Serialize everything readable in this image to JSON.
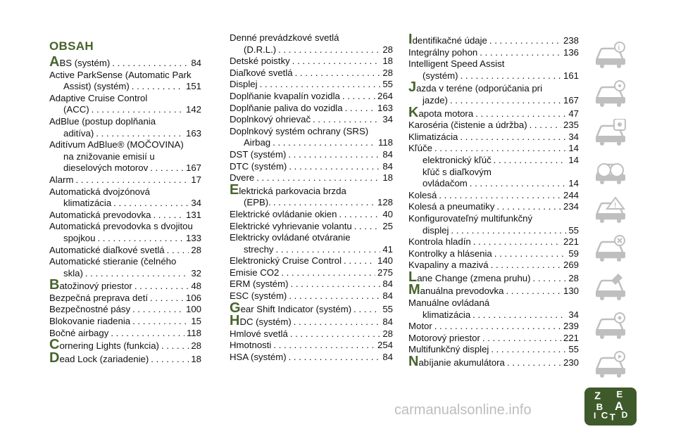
{
  "heading": "OBSAH",
  "columns": [
    [
      {
        "letter": "A",
        "lines": [
          {
            "text": "BS (systém)",
            "page": "84"
          }
        ]
      },
      {
        "lines": [
          {
            "text": "Active ParkSense (Automatic Park"
          },
          {
            "text": "Assist) (systém)",
            "page": "151",
            "indent": true
          }
        ]
      },
      {
        "lines": [
          {
            "text": "Adaptive Cruise Control"
          },
          {
            "text": "(ACC)",
            "page": "142",
            "indent": true
          }
        ]
      },
      {
        "lines": [
          {
            "text": "AdBlue (postup doplňania"
          },
          {
            "text": "aditíva)",
            "page": "163",
            "indent": true
          }
        ]
      },
      {
        "lines": [
          {
            "text": "Aditívum AdBlue® (MOČOVINA)"
          },
          {
            "text": "na znižovanie emisií u",
            "indent": true
          },
          {
            "text": "dieselových motorov",
            "page": "167",
            "indent": true
          }
        ]
      },
      {
        "lines": [
          {
            "text": "Alarm",
            "page": "17"
          }
        ]
      },
      {
        "lines": [
          {
            "text": "Automatická dvojzónová"
          },
          {
            "text": "klimatizácia",
            "page": "34",
            "indent": true
          }
        ]
      },
      {
        "lines": [
          {
            "text": "Automatická prevodovka",
            "page": "131"
          }
        ]
      },
      {
        "lines": [
          {
            "text": "Automatická prevodovka s dvojitou"
          },
          {
            "text": "spojkou",
            "page": "133",
            "indent": true
          }
        ]
      },
      {
        "lines": [
          {
            "text": "Automatické diaľkové svetlá",
            "page": "28"
          }
        ]
      },
      {
        "lines": [
          {
            "text": "Automatické stieranie (čelného"
          },
          {
            "text": "skla)",
            "page": "32",
            "indent": true
          }
        ]
      },
      {
        "letter": "B",
        "lines": [
          {
            "text": "atožinový priestor",
            "page": "48"
          }
        ]
      },
      {
        "lines": [
          {
            "text": "Bezpečná preprava detí",
            "page": "106"
          }
        ]
      },
      {
        "lines": [
          {
            "text": "Bezpečnostné pásy",
            "page": "100"
          }
        ]
      },
      {
        "lines": [
          {
            "text": "Blokovanie riadenia",
            "page": "15"
          }
        ]
      },
      {
        "lines": [
          {
            "text": "Bočné airbagy",
            "page": "118"
          }
        ]
      },
      {
        "letter": "C",
        "lines": [
          {
            "text": "ornering Lights (funkcia)",
            "page": "28"
          }
        ]
      },
      {
        "letter": "D",
        "lines": [
          {
            "text": "ead Lock (zariadenie)",
            "page": "18"
          }
        ]
      }
    ],
    [
      {
        "lines": [
          {
            "text": "Denné prevádzkové svetlá"
          },
          {
            "text": "(D.R.L.)",
            "page": "28",
            "indent": true
          }
        ]
      },
      {
        "lines": [
          {
            "text": "Detské poistky",
            "page": "18"
          }
        ]
      },
      {
        "lines": [
          {
            "text": "Diaľkové svetlá",
            "page": "28"
          }
        ]
      },
      {
        "lines": [
          {
            "text": "Displej",
            "page": "55"
          }
        ]
      },
      {
        "lines": [
          {
            "text": "Doplňanie kvapalín vozidla",
            "page": "264"
          }
        ]
      },
      {
        "lines": [
          {
            "text": "Doplňanie paliva do vozidla",
            "page": "163"
          }
        ]
      },
      {
        "lines": [
          {
            "text": "Doplnkový ohrievač",
            "page": "34"
          }
        ]
      },
      {
        "lines": [
          {
            "text": "Doplnkový systém ochrany (SRS)"
          },
          {
            "text": "Airbag",
            "page": "118",
            "indent": true
          }
        ]
      },
      {
        "lines": [
          {
            "text": "DST (systém)",
            "page": "84"
          }
        ]
      },
      {
        "lines": [
          {
            "text": "DTC (systém)",
            "page": "84"
          }
        ]
      },
      {
        "lines": [
          {
            "text": "Dvere",
            "page": "18"
          }
        ]
      },
      {
        "letter": "E",
        "lines": [
          {
            "text": "lektrická parkovacia brzda"
          },
          {
            "text": "(EPB).",
            "page": "128",
            "indent": true
          }
        ]
      },
      {
        "lines": [
          {
            "text": "Elektrické ovládanie okien",
            "page": "40"
          }
        ]
      },
      {
        "lines": [
          {
            "text": "Elektrické vyhrievanie volantu",
            "page": "25"
          }
        ]
      },
      {
        "lines": [
          {
            "text": "Elektricky ovládané otváranie"
          },
          {
            "text": "strechy",
            "page": "41",
            "indent": true
          }
        ]
      },
      {
        "lines": [
          {
            "text": "Elektronický Cruise Control",
            "page": "140"
          }
        ]
      },
      {
        "lines": [
          {
            "text": "Emisie CO2",
            "page": "275"
          }
        ]
      },
      {
        "lines": [
          {
            "text": "ERM (systém)",
            "page": "84"
          }
        ]
      },
      {
        "lines": [
          {
            "text": "ESC (systém)",
            "page": "84"
          }
        ]
      },
      {
        "letter": "G",
        "lines": [
          {
            "text": "ear Shift Indicator (systém)",
            "page": "55"
          }
        ]
      },
      {
        "letter": "H",
        "lines": [
          {
            "text": "DC (systém)",
            "page": "84"
          }
        ]
      },
      {
        "lines": [
          {
            "text": "Hmlové svetlá",
            "page": "28"
          }
        ]
      },
      {
        "lines": [
          {
            "text": "Hmotnosti",
            "page": "254"
          }
        ]
      },
      {
        "lines": [
          {
            "text": "HSA (systém)",
            "page": "84"
          }
        ]
      }
    ],
    [
      {
        "letter": "I",
        "lines": [
          {
            "text": "dentifikačné údaje",
            "page": "238"
          }
        ]
      },
      {
        "lines": [
          {
            "text": "Integrálny pohon",
            "page": "136"
          }
        ]
      },
      {
        "lines": [
          {
            "text": "Intelligent Speed Assist"
          },
          {
            "text": "(systém)",
            "page": "161",
            "indent": true
          }
        ]
      },
      {
        "letter": "J",
        "lines": [
          {
            "text": "azda v teréne (odporúčania pri"
          },
          {
            "text": "jazde)",
            "page": "167",
            "indent": true
          }
        ]
      },
      {
        "letter": "K",
        "lines": [
          {
            "text": "apota motora",
            "page": "47"
          }
        ]
      },
      {
        "lines": [
          {
            "text": "Karoséria (čistenie a údržba)",
            "page": "235"
          }
        ]
      },
      {
        "lines": [
          {
            "text": "Klimatizácia",
            "page": "34"
          }
        ]
      },
      {
        "lines": [
          {
            "text": "Kľúče",
            "page": "14"
          }
        ]
      },
      {
        "lines": [
          {
            "text": "elektronický kľúč",
            "page": "14",
            "indent": true
          }
        ]
      },
      {
        "lines": [
          {
            "text": "kľúč s diaľkovým",
            "indent": true
          },
          {
            "text": "ovládačom",
            "page": "14",
            "indent": true
          }
        ]
      },
      {
        "lines": [
          {
            "text": "Kolesá",
            "page": "244"
          }
        ]
      },
      {
        "lines": [
          {
            "text": "Kolesá a pneumatiky",
            "page": "234"
          }
        ]
      },
      {
        "lines": [
          {
            "text": "Konfigurovateľný multifunkčný"
          },
          {
            "text": "displej",
            "page": "55",
            "indent": true
          }
        ]
      },
      {
        "lines": [
          {
            "text": "Kontrola hladín",
            "page": "221"
          }
        ]
      },
      {
        "lines": [
          {
            "text": "Kontrolky a hlásenia",
            "page": "59"
          }
        ]
      },
      {
        "lines": [
          {
            "text": "Kvapaliny a mazivá",
            "page": "269"
          }
        ]
      },
      {
        "letter": "L",
        "lines": [
          {
            "text": "ane Change (zmena pruhu)",
            "page": "28"
          }
        ]
      },
      {
        "letter": "M",
        "lines": [
          {
            "text": "anuálna prevodovka",
            "page": "130"
          }
        ]
      },
      {
        "lines": [
          {
            "text": "Manuálne ovládaná"
          },
          {
            "text": "klimatizácia",
            "page": "34",
            "indent": true
          }
        ]
      },
      {
        "lines": [
          {
            "text": "Motor",
            "page": "239"
          }
        ]
      },
      {
        "lines": [
          {
            "text": "Motorový priestor",
            "page": "221"
          }
        ]
      },
      {
        "lines": [
          {
            "text": "Multifunkčný displej",
            "page": "55"
          }
        ]
      },
      {
        "letter": "N",
        "lines": [
          {
            "text": "abíjanie akumulátora",
            "page": "230"
          }
        ]
      }
    ]
  ],
  "sidebar_icons": [
    "car-info-icon",
    "car-driving-icon",
    "car-safety-icon",
    "car-start-icon",
    "car-warning-icon",
    "car-emergency-icon",
    "car-service-icon",
    "car-tech-icon",
    "car-multimedia-icon",
    "alphabetical-index-icon"
  ],
  "index_tab_letters": [
    "Z",
    "E",
    "B",
    "A",
    "C",
    "T",
    "D",
    "I"
  ],
  "watermark": "carmanualsonline.info",
  "colors": {
    "accent": "#47642b",
    "active_tab": "#3e5a2a",
    "icon_gray": "#bfbfbf"
  }
}
